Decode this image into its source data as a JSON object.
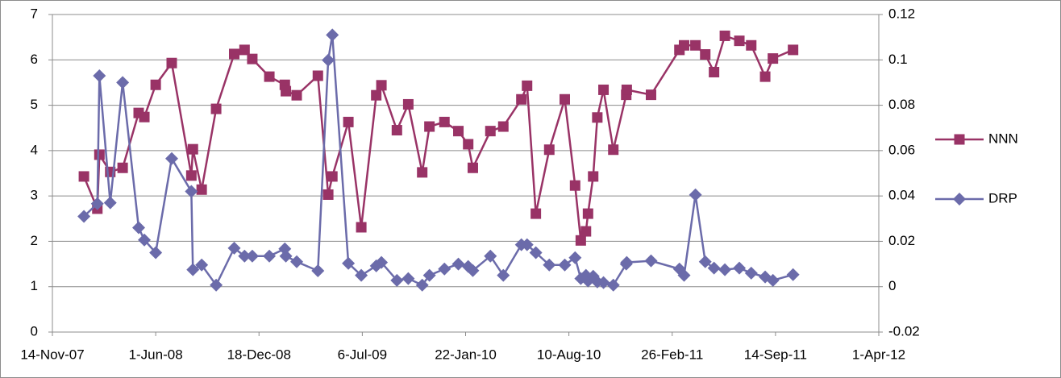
{
  "chart_data": {
    "type": "line",
    "xlim": [
      "2007-11-14",
      "2012-04-01"
    ],
    "xticks": [
      {
        "value": "2007-11-14",
        "label": "14-Nov-07"
      },
      {
        "value": "2008-06-01",
        "label": "1-Jun-08"
      },
      {
        "value": "2008-12-18",
        "label": "18-Dec-08"
      },
      {
        "value": "2009-07-06",
        "label": "6-Jul-09"
      },
      {
        "value": "2010-01-22",
        "label": "22-Jan-10"
      },
      {
        "value": "2010-08-10",
        "label": "10-Aug-10"
      },
      {
        "value": "2011-02-26",
        "label": "26-Feb-11"
      },
      {
        "value": "2011-09-14",
        "label": "14-Sep-11"
      },
      {
        "value": "2012-04-01",
        "label": "1-Apr-12"
      }
    ],
    "ylim": [
      0,
      7
    ],
    "yticks": [
      0,
      1,
      2,
      3,
      4,
      5,
      6,
      7
    ],
    "y2lim": [
      -0.02,
      0.12
    ],
    "y2ticks": [
      -0.02,
      0,
      0.02,
      0.04,
      0.06,
      0.08,
      0.1,
      0.12
    ],
    "grid": true,
    "legend": "right",
    "series": [
      {
        "name": "NNN",
        "color": "#993366",
        "marker": "square",
        "x": [
          "2008-01-14",
          "2008-02-09",
          "2008-02-13",
          "2008-03-05",
          "2008-03-29",
          "2008-04-29",
          "2008-05-10",
          "2008-06-01",
          "2008-07-02",
          "2008-08-09",
          "2008-08-12",
          "2008-08-29",
          "2008-09-26",
          "2008-10-31",
          "2008-11-20",
          "2008-12-05",
          "2009-01-07",
          "2009-02-06",
          "2009-02-08",
          "2009-03-01",
          "2009-04-11",
          "2009-05-01",
          "2009-05-09",
          "2009-06-09",
          "2009-07-04",
          "2009-08-02",
          "2009-08-12",
          "2009-09-11",
          "2009-10-03",
          "2009-10-30",
          "2009-11-13",
          "2009-12-12",
          "2010-01-08",
          "2010-01-27",
          "2010-02-05",
          "2010-03-11",
          "2010-04-05",
          "2010-05-10",
          "2010-05-21",
          "2010-06-07",
          "2010-07-03",
          "2010-08-02",
          "2010-08-22",
          "2010-09-02",
          "2010-09-12",
          "2010-09-16",
          "2010-09-26",
          "2010-10-04",
          "2010-10-16",
          "2010-11-04",
          "2010-11-29",
          "2010-11-30",
          "2011-01-16",
          "2011-03-12",
          "2011-03-21",
          "2011-04-12",
          "2011-05-01",
          "2011-05-18",
          "2011-06-08",
          "2011-07-06",
          "2011-07-29",
          "2011-08-25",
          "2011-09-09",
          "2011-10-18"
        ],
        "values": [
          3.43,
          2.72,
          3.91,
          3.53,
          3.62,
          4.83,
          4.74,
          5.45,
          5.93,
          3.45,
          4.03,
          3.14,
          4.92,
          6.13,
          6.22,
          6.02,
          5.63,
          5.45,
          5.31,
          5.22,
          5.65,
          3.03,
          3.43,
          4.63,
          2.31,
          5.22,
          5.44,
          4.45,
          5.02,
          3.52,
          4.53,
          4.63,
          4.43,
          4.14,
          3.62,
          4.43,
          4.53,
          5.13,
          5.43,
          2.61,
          4.02,
          5.13,
          3.23,
          2.02,
          2.22,
          2.61,
          3.43,
          4.73,
          5.34,
          4.02,
          5.23,
          5.34,
          5.23,
          6.22,
          6.32,
          6.32,
          6.12,
          5.73,
          6.53,
          6.42,
          6.32,
          5.63,
          6.03,
          6.22
        ]
      },
      {
        "name": "DRP",
        "color": "#6B6BAA",
        "marker": "diamond",
        "axis": "y2",
        "x": [
          "2008-01-14",
          "2008-02-09",
          "2008-02-13",
          "2008-03-05",
          "2008-03-29",
          "2008-04-29",
          "2008-05-10",
          "2008-06-01",
          "2008-07-02",
          "2008-08-09",
          "2008-08-12",
          "2008-08-29",
          "2008-09-26",
          "2008-10-31",
          "2008-11-20",
          "2008-12-05",
          "2009-01-07",
          "2009-02-06",
          "2009-02-08",
          "2009-03-01",
          "2009-04-11",
          "2009-05-01",
          "2009-05-09",
          "2009-06-09",
          "2009-07-04",
          "2009-08-02",
          "2009-08-12",
          "2009-09-11",
          "2009-10-03",
          "2009-10-30",
          "2009-11-13",
          "2009-12-12",
          "2010-01-08",
          "2010-01-27",
          "2010-02-05",
          "2010-03-11",
          "2010-04-05",
          "2010-05-10",
          "2010-05-21",
          "2010-06-07",
          "2010-07-03",
          "2010-08-02",
          "2010-08-22",
          "2010-09-02",
          "2010-09-12",
          "2010-09-16",
          "2010-09-26",
          "2010-10-04",
          "2010-10-16",
          "2010-11-04",
          "2010-11-29",
          "2010-11-30",
          "2011-01-16",
          "2011-03-12",
          "2011-03-21",
          "2011-04-12",
          "2011-05-01",
          "2011-05-18",
          "2011-06-08",
          "2011-07-06",
          "2011-07-29",
          "2011-08-25",
          "2011-09-09",
          "2011-10-18"
        ],
        "values": [
          0.031,
          0.0366,
          0.093,
          0.037,
          0.09,
          0.026,
          0.0206,
          0.015,
          0.0565,
          0.042,
          0.0075,
          0.0096,
          0.0007,
          0.017,
          0.0135,
          0.0135,
          0.0135,
          0.0167,
          0.0135,
          0.011,
          0.007,
          0.0999,
          0.111,
          0.0103,
          0.005,
          0.0092,
          0.0107,
          0.0028,
          0.0036,
          0.0007,
          0.005,
          0.0078,
          0.01,
          0.0089,
          0.0071,
          0.0135,
          0.005,
          0.0185,
          0.0185,
          0.015,
          0.0096,
          0.0096,
          0.0128,
          0.0036,
          0.005,
          0.0025,
          0.0046,
          0.0021,
          0.0018,
          0.0007,
          0.01,
          0.0107,
          0.0114,
          0.0078,
          0.005,
          0.0405,
          0.011,
          0.0082,
          0.0075,
          0.0082,
          0.006,
          0.0043,
          0.0028,
          0.0053
        ]
      }
    ]
  }
}
